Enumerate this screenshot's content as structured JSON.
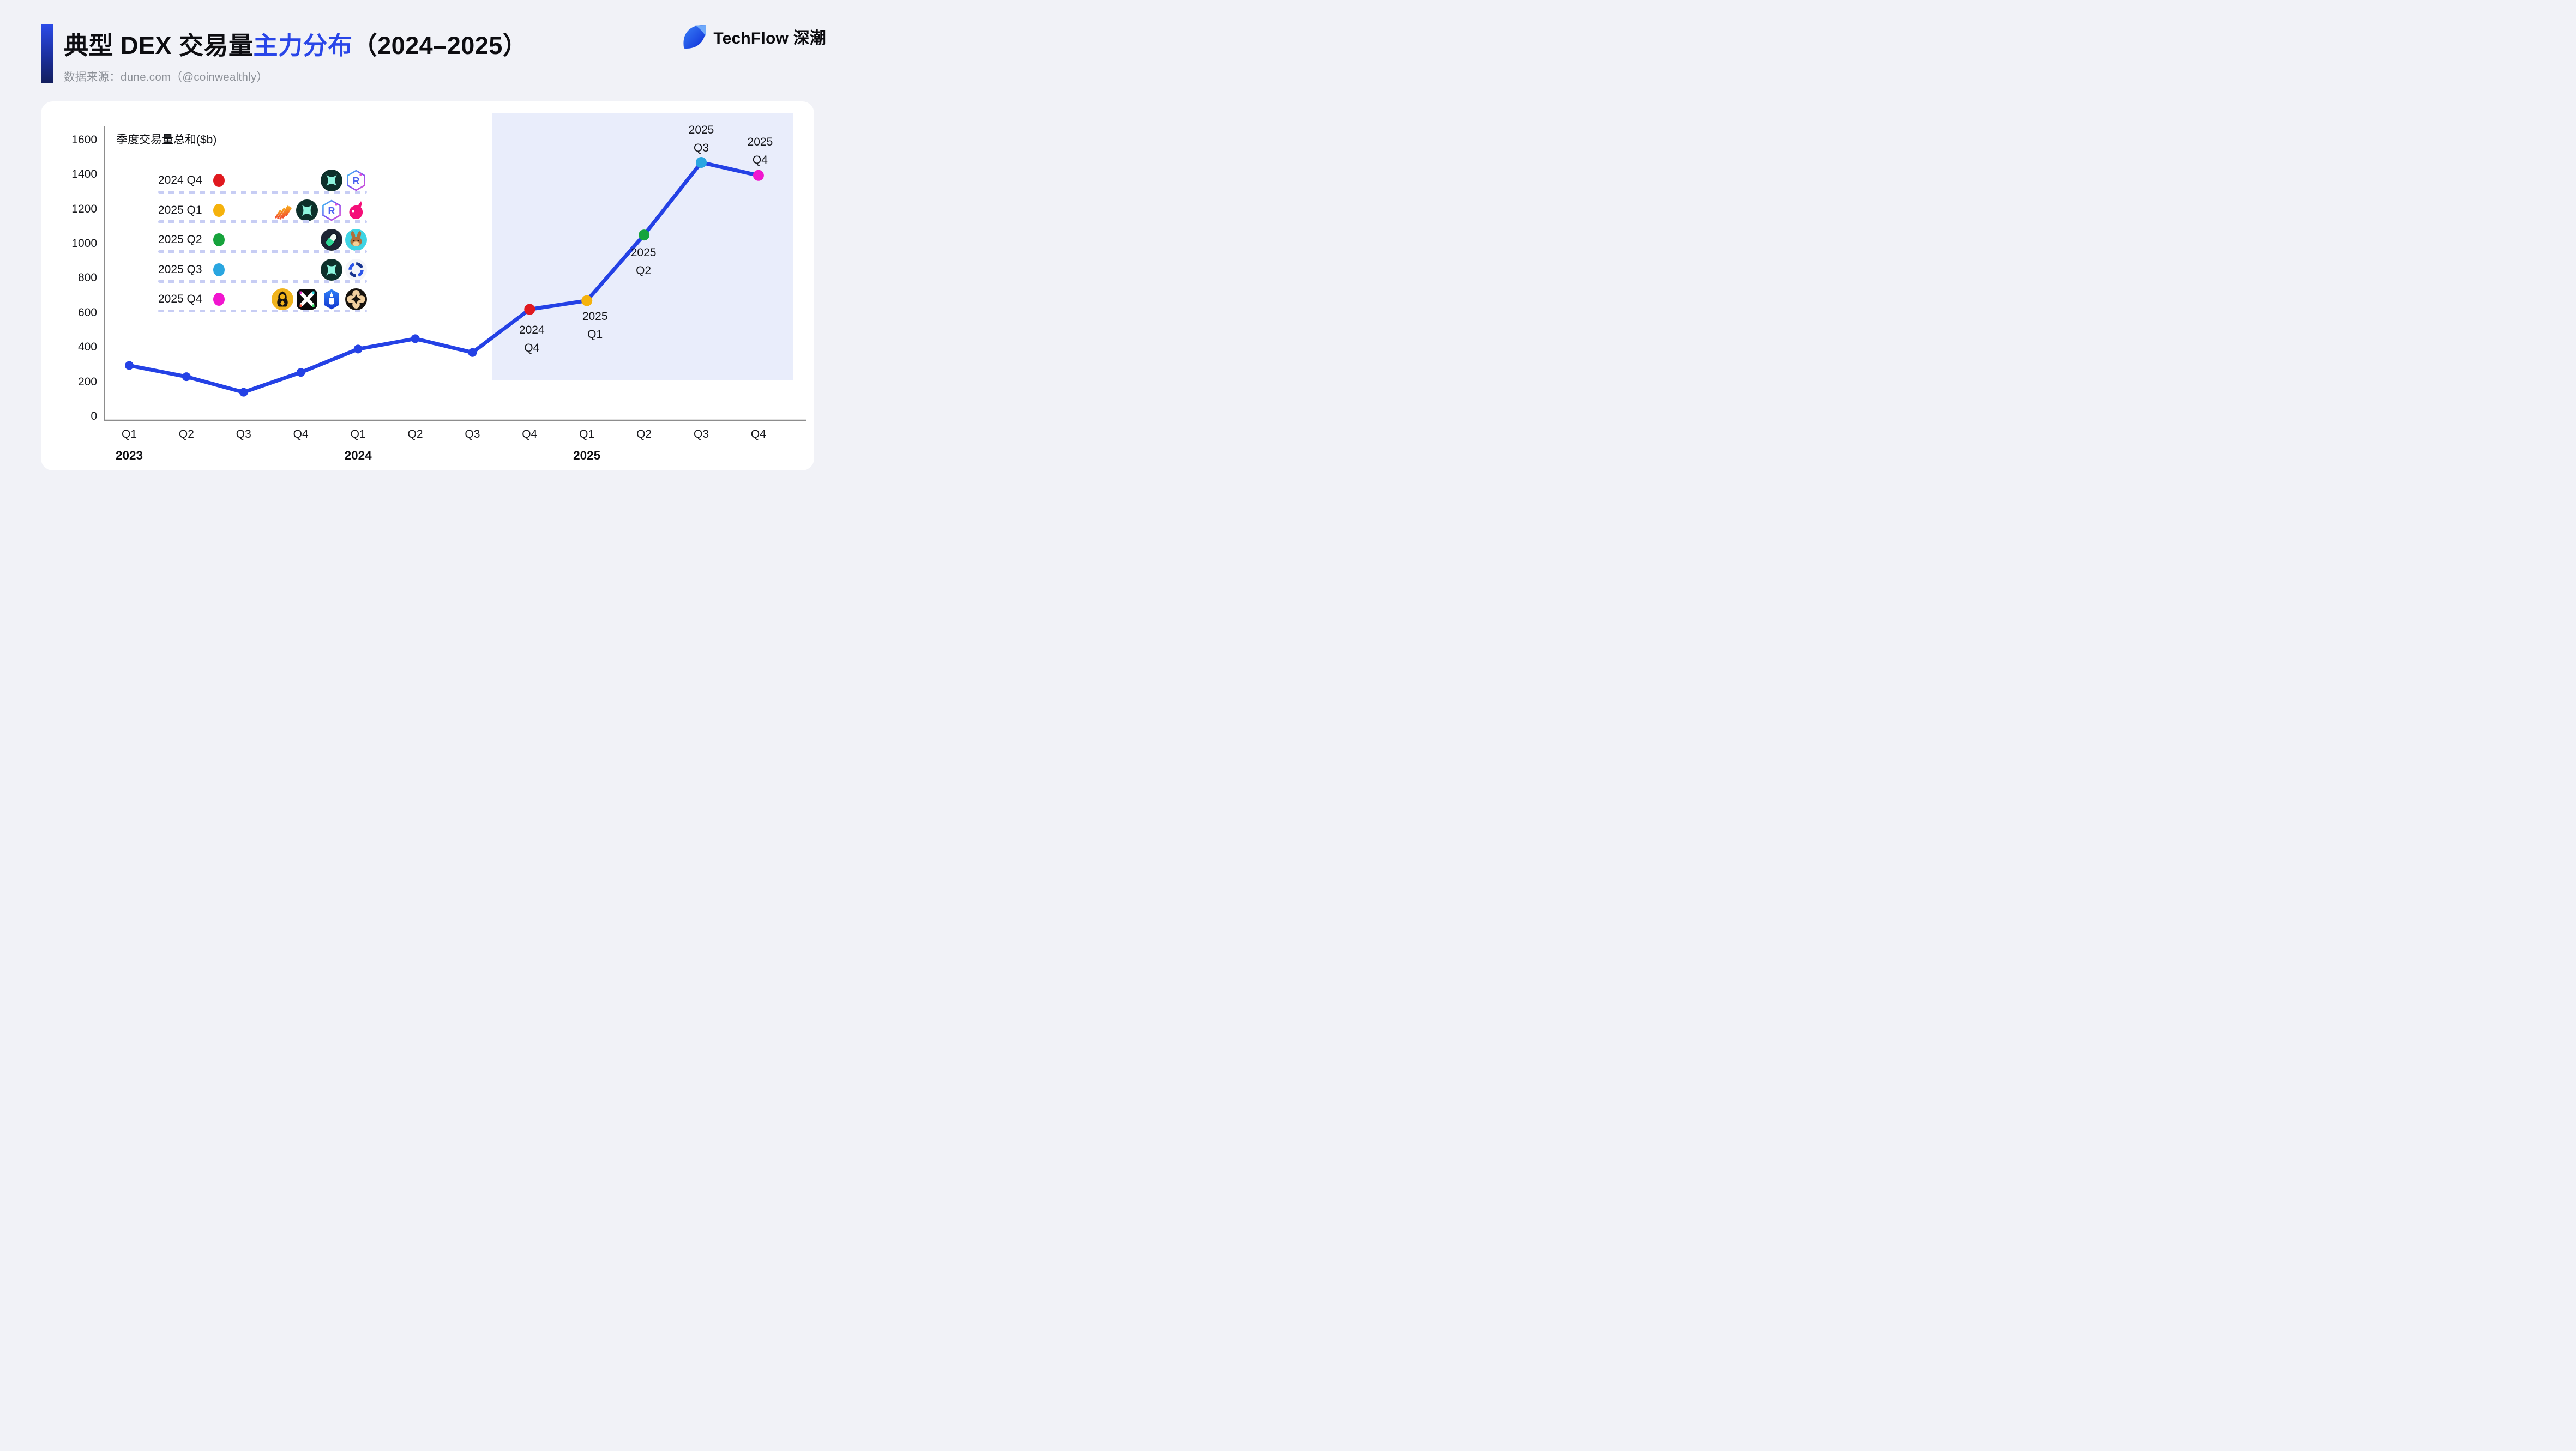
{
  "page": {
    "background": "#f1f2f7",
    "card_background": "#ffffff"
  },
  "header": {
    "title_part1": "典型 DEX 交易量",
    "title_highlight": "主力分布",
    "title_part2": "（2024–2025）",
    "title_highlight_color": "#2946e8",
    "subtitle": "数据来源：dune.com（@coinwealthly）",
    "brand": "TechFlow 深潮",
    "accent_colors": [
      "#2b4be8",
      "#131f5e"
    ]
  },
  "chart_data": {
    "type": "line",
    "title": "季度交易量总和($b)",
    "unit": "$b",
    "x_ticks": [
      "Q1",
      "Q2",
      "Q3",
      "Q4",
      "Q1",
      "Q2",
      "Q3",
      "Q4",
      "Q1",
      "Q2",
      "Q3",
      "Q4"
    ],
    "x_groups": [
      {
        "label": "2023",
        "tick_index": 0
      },
      {
        "label": "2024",
        "tick_index": 4
      },
      {
        "label": "2025",
        "tick_index": 8
      }
    ],
    "values": [
      295,
      230,
      140,
      255,
      390,
      450,
      370,
      620,
      670,
      1050,
      1470,
      1395
    ],
    "ylim": [
      0,
      1600
    ],
    "y_tick_step": 200,
    "grid": false,
    "axis_color": "#8d8d8d",
    "line_color": "#2441e5",
    "point_color": "#2441e5",
    "highlight_region": {
      "from_index": 7,
      "to_index": 11,
      "color": "#e9edfb"
    },
    "milestones": [
      {
        "index": 7,
        "label_lines": [
          "2024",
          "Q4"
        ],
        "color": "#e0191f"
      },
      {
        "index": 8,
        "label_lines": [
          "2025",
          "Q1"
        ],
        "color": "#f5b20c"
      },
      {
        "index": 9,
        "label_lines": [
          "2025",
          "Q2"
        ],
        "color": "#17a33c"
      },
      {
        "index": 10,
        "label_lines": [
          "2025",
          "Q3"
        ],
        "color": "#2aa6e0"
      },
      {
        "index": 11,
        "label_lines": [
          "2025",
          "Q4"
        ],
        "color": "#f116cf"
      }
    ]
  },
  "legend": {
    "rows": [
      {
        "label": "2024 Q4",
        "dot_color": "#e0191f",
        "icons": [
          "hyperliquid",
          "raydium"
        ]
      },
      {
        "label": "2025 Q1",
        "dot_color": "#f5b20c",
        "icons": [
          "meteora",
          "hyperliquid",
          "raydium",
          "uniswap"
        ]
      },
      {
        "label": "2025 Q2",
        "dot_color": "#17a33c",
        "icons": [
          "pumpfun-pill",
          "pancakeswap-bunny"
        ]
      },
      {
        "label": "2025 Q3",
        "dot_color": "#2aa6e0",
        "icons": [
          "hyperliquid",
          "blue-ring"
        ]
      },
      {
        "label": "2025 Q4",
        "dot_color": "#f116cf",
        "icons": [
          "hooded-figure",
          "aster-x",
          "lighter",
          "tan-clover"
        ]
      }
    ]
  }
}
